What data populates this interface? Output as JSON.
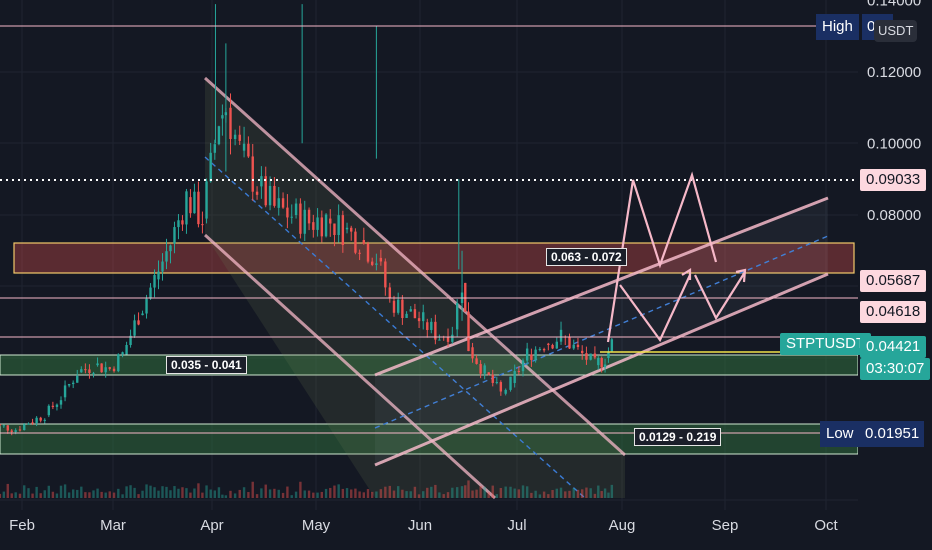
{
  "chart_data": {
    "type": "line",
    "title": "",
    "symbol_badge": "USDT",
    "x_ticks": [
      "Feb",
      "Mar",
      "Apr",
      "May",
      "Jun",
      "Jul",
      "Aug",
      "Sep",
      "Oct"
    ],
    "y_ticks": [
      "0.14000",
      "0.12000",
      "0.10000",
      "0.08000"
    ],
    "series": [
      {
        "values": [
          [
            "Jan 20",
            0.022
          ],
          [
            "Jan 25",
            0.021
          ],
          [
            "Jan 30",
            0.02
          ],
          [
            "Feb 3",
            0.022
          ],
          [
            "Feb 8",
            0.024
          ],
          [
            "Feb 13",
            0.029
          ],
          [
            "Feb 18",
            0.036
          ],
          [
            "Feb 23",
            0.038
          ],
          [
            "Feb 28",
            0.037
          ],
          [
            "Mar 4",
            0.041
          ],
          [
            "Mar 9",
            0.052
          ],
          [
            "Mar 14",
            0.062
          ],
          [
            "Mar 19",
            0.072
          ],
          [
            "Mar 24",
            0.085
          ],
          [
            "Mar 29",
            0.079
          ],
          [
            "Apr 3",
            0.107
          ],
          [
            "Apr 5",
            0.11
          ],
          [
            "Apr 9",
            0.098
          ],
          [
            "Apr 14",
            0.088
          ],
          [
            "Apr 19",
            0.082
          ],
          [
            "Apr 24",
            0.08
          ],
          [
            "Apr 29",
            0.078
          ],
          [
            "May 4",
            0.079
          ],
          [
            "May 9",
            0.076
          ],
          [
            "May 14",
            0.073
          ],
          [
            "May 19",
            0.068
          ],
          [
            "May 23",
            0.056
          ],
          [
            "May 28",
            0.053
          ],
          [
            "Jun 2",
            0.05
          ],
          [
            "Jun 7",
            0.046
          ],
          [
            "Jun 11",
            0.048
          ],
          [
            "Jun 14",
            0.061
          ],
          [
            "Jun 16",
            0.043
          ],
          [
            "Jun 21",
            0.036
          ],
          [
            "Jun 26",
            0.03
          ],
          [
            "Jun 29",
            0.033
          ],
          [
            "Jul 4",
            0.041
          ],
          [
            "Jul 9",
            0.044
          ],
          [
            "Jul 14",
            0.046
          ],
          [
            "Jul 19",
            0.042
          ],
          [
            "Jul 24",
            0.038
          ],
          [
            "Jul 27",
            0.04
          ],
          [
            "Jul 29",
            0.044
          ]
        ]
      }
    ],
    "price_levels": [
      {
        "value": "0.09033",
        "style": "dotted-white"
      },
      {
        "value": "0.05687",
        "style": "pink"
      },
      {
        "value": "0.04618",
        "style": "pink"
      },
      {
        "value": "0.04421",
        "style": "teal-current"
      }
    ],
    "zones": [
      {
        "label": "0.063 - 0.072",
        "color": "#a33a44"
      },
      {
        "label": "0.035 - 0.041",
        "color": "#2f6f3e"
      },
      {
        "label": "0.0129 - 0.219",
        "color": "#2f6f3e"
      }
    ],
    "high": {
      "label": "High",
      "value": "0.1"
    },
    "low": {
      "label": "Low",
      "value": "0.01951"
    },
    "current": {
      "symbol": "STPTUSDT",
      "price": "0.04421",
      "countdown": "03:30:07"
    },
    "colors": {
      "background": "#141823",
      "up_candle": "#26a69a",
      "down_candle": "#ef5350",
      "channel": "#f6b8c8",
      "midline": "#3a7bd5",
      "teal_tag": "#26a69a",
      "navy_tag": "#1a2f63"
    }
  }
}
